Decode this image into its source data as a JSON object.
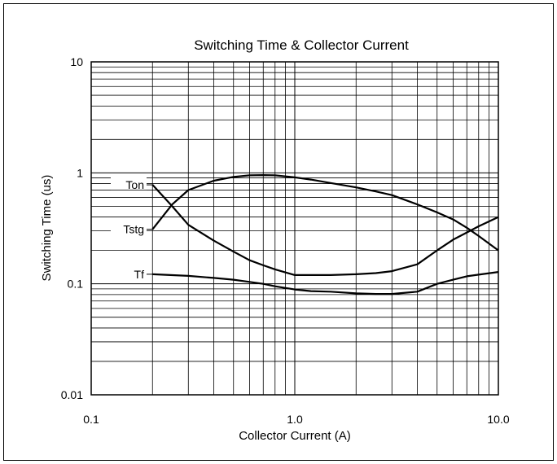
{
  "chart_data": {
    "type": "line",
    "title": "Switching Time & Collector Current",
    "xlabel": "Collector Current (A)",
    "ylabel": "Switching Time (us)",
    "xscale": "log",
    "yscale": "log",
    "xlim": [
      0.1,
      10.0
    ],
    "ylim": [
      0.01,
      10
    ],
    "grid": true,
    "x_ticks": [
      "0.1",
      "1.0",
      "10.0"
    ],
    "y_ticks": [
      "0.01",
      "0.1",
      "1",
      "10"
    ],
    "series": [
      {
        "name": "Ton",
        "x": [
          0.2,
          0.25,
          0.3,
          0.4,
          0.5,
          0.6,
          0.7,
          0.8,
          1.0,
          1.2,
          1.5,
          2.0,
          2.5,
          3.0,
          4.0,
          5.0,
          6.0,
          7.0,
          8.0,
          10.0
        ],
        "y": [
          0.78,
          0.5,
          0.34,
          0.245,
          0.195,
          0.163,
          0.147,
          0.135,
          0.12,
          0.12,
          0.12,
          0.122,
          0.125,
          0.13,
          0.15,
          0.2,
          0.25,
          0.29,
          0.33,
          0.4
        ]
      },
      {
        "name": "Tstg",
        "x": [
          0.2,
          0.25,
          0.3,
          0.4,
          0.5,
          0.6,
          0.7,
          0.8,
          1.0,
          1.2,
          1.5,
          2.0,
          2.5,
          3.0,
          4.0,
          5.0,
          6.0,
          7.0,
          8.0,
          10.0
        ],
        "y": [
          0.31,
          0.52,
          0.7,
          0.85,
          0.92,
          0.95,
          0.955,
          0.95,
          0.91,
          0.87,
          0.81,
          0.74,
          0.68,
          0.63,
          0.52,
          0.44,
          0.38,
          0.32,
          0.27,
          0.2
        ]
      },
      {
        "name": "Tf",
        "x": [
          0.2,
          0.3,
          0.4,
          0.5,
          0.6,
          0.7,
          0.8,
          1.0,
          1.2,
          1.5,
          2.0,
          2.5,
          3.0,
          4.0,
          5.0,
          6.0,
          7.0,
          8.0,
          10.0
        ],
        "y": [
          0.122,
          0.118,
          0.113,
          0.109,
          0.104,
          0.1,
          0.095,
          0.089,
          0.086,
          0.085,
          0.082,
          0.081,
          0.081,
          0.085,
          0.1,
          0.109,
          0.117,
          0.121,
          0.128
        ]
      }
    ],
    "labels": [
      {
        "text": "Ton",
        "series": "Ton",
        "x": 0.2,
        "y": 0.78
      },
      {
        "text": "Tstg",
        "series": "Tstg",
        "x": 0.2,
        "y": 0.31
      },
      {
        "text": "Tf",
        "series": "Tf",
        "x": 0.2,
        "y": 0.122
      }
    ]
  }
}
